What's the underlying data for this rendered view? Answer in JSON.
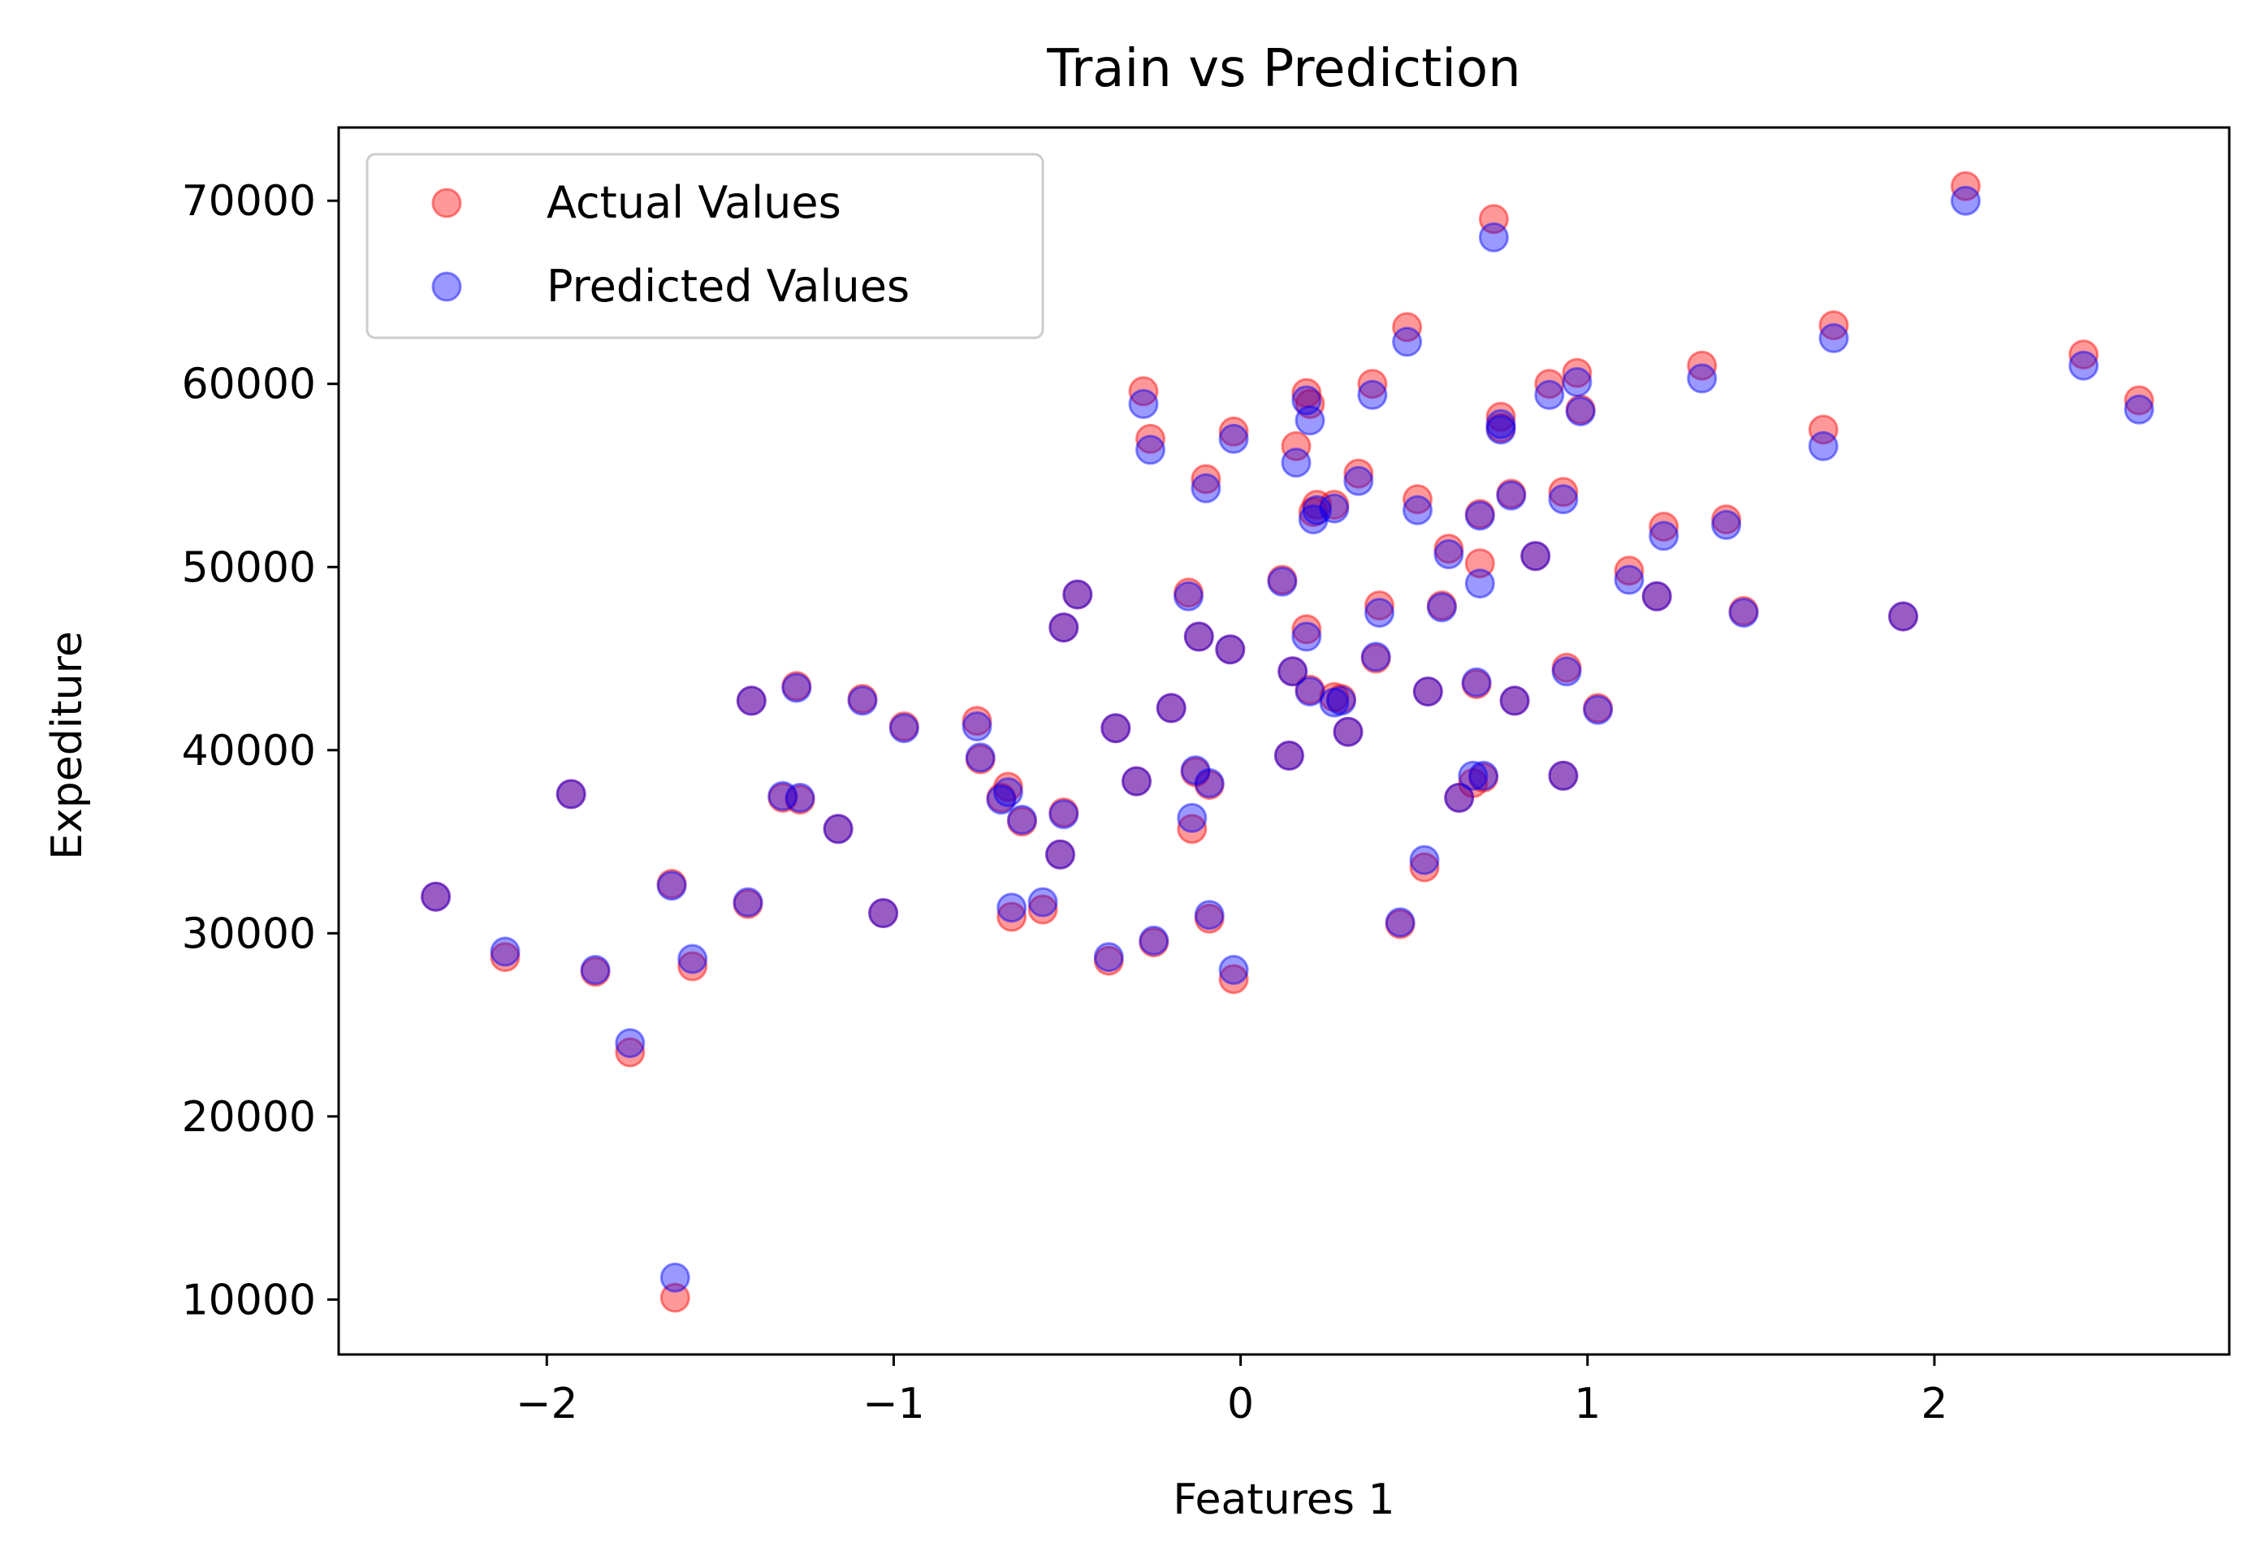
{
  "chart_data": {
    "type": "scatter",
    "title": "Train vs Prediction",
    "xlabel": "Features 1",
    "ylabel": "Expediture",
    "xlim": [
      -2.6,
      2.85
    ],
    "ylim": [
      7000,
      74000
    ],
    "xticks": [
      -2,
      -1,
      0,
      1,
      2
    ],
    "xtick_labels": [
      "−2",
      "−1",
      "0",
      "1",
      "2"
    ],
    "yticks": [
      10000,
      20000,
      30000,
      40000,
      50000,
      60000,
      70000
    ],
    "ytick_labels": [
      "10000",
      "20000",
      "30000",
      "40000",
      "50000",
      "60000",
      "70000"
    ],
    "grid": false,
    "legend_position": "top-left",
    "series": [
      {
        "name": "Actual Values",
        "color": "#ff0000",
        "x": [
          -2.32,
          -2.12,
          -1.93,
          -1.86,
          -1.76,
          -1.63,
          -1.64,
          -1.58,
          -1.42,
          -1.41,
          -1.32,
          -1.28,
          -1.27,
          -1.16,
          -1.09,
          -1.03,
          -0.97,
          -0.76,
          -0.75,
          -0.69,
          -0.67,
          -0.66,
          -0.63,
          -0.57,
          -0.52,
          -0.51,
          -0.51,
          -0.47,
          -0.38,
          -0.36,
          -0.3,
          -0.28,
          -0.26,
          -0.25,
          -0.2,
          -0.15,
          -0.14,
          -0.13,
          -0.12,
          -0.1,
          -0.09,
          -0.09,
          -0.03,
          -0.02,
          -0.02,
          0.12,
          0.14,
          0.15,
          0.16,
          0.19,
          0.19,
          0.2,
          0.2,
          0.21,
          0.22,
          0.27,
          0.27,
          0.29,
          0.31,
          0.34,
          0.38,
          0.39,
          0.4,
          0.46,
          0.48,
          0.51,
          0.53,
          0.54,
          0.58,
          0.6,
          0.63,
          0.67,
          0.68,
          0.69,
          0.69,
          0.7,
          0.73,
          0.75,
          0.75,
          0.78,
          0.79,
          0.85,
          0.89,
          0.93,
          0.93,
          0.94,
          0.97,
          0.98,
          1.03,
          1.12,
          1.2,
          1.22,
          1.33,
          1.4,
          1.45,
          1.68,
          1.71,
          1.91,
          2.09,
          2.43,
          2.59
        ],
        "y": [
          32000,
          28700,
          37600,
          27900,
          23500,
          10100,
          32700,
          28200,
          31600,
          42700,
          37400,
          43500,
          37300,
          35700,
          42800,
          31100,
          41300,
          41600,
          39500,
          37400,
          38000,
          30900,
          36100,
          31300,
          34300,
          36600,
          46700,
          48500,
          28500,
          41200,
          38300,
          59600,
          57000,
          29500,
          42300,
          48600,
          35700,
          38800,
          46200,
          54800,
          30800,
          38100,
          45500,
          57400,
          27500,
          49300,
          39700,
          44300,
          56600,
          59500,
          46600,
          43300,
          58900,
          53000,
          53400,
          42900,
          53400,
          42800,
          41000,
          55100,
          60000,
          45000,
          47900,
          30500,
          63100,
          53700,
          33600,
          43200,
          47900,
          51000,
          37400,
          38200,
          43600,
          50200,
          52900,
          38500,
          69000,
          58200,
          57600,
          54000,
          42700,
          50600,
          60000,
          54100,
          38600,
          44500,
          60600,
          58600,
          42300,
          49800,
          48400,
          52200,
          61000,
          52600,
          47600,
          57500,
          63200,
          47300,
          70800,
          61600,
          59100
        ]
      },
      {
        "name": "Predicted Values",
        "color": "#0000ff",
        "x": [
          -2.32,
          -2.12,
          -1.93,
          -1.86,
          -1.76,
          -1.63,
          -1.64,
          -1.58,
          -1.42,
          -1.41,
          -1.32,
          -1.28,
          -1.27,
          -1.16,
          -1.09,
          -1.03,
          -0.97,
          -0.76,
          -0.75,
          -0.69,
          -0.67,
          -0.66,
          -0.63,
          -0.57,
          -0.52,
          -0.51,
          -0.51,
          -0.47,
          -0.38,
          -0.36,
          -0.3,
          -0.28,
          -0.26,
          -0.25,
          -0.2,
          -0.15,
          -0.14,
          -0.13,
          -0.12,
          -0.1,
          -0.09,
          -0.09,
          -0.03,
          -0.02,
          -0.02,
          0.12,
          0.14,
          0.15,
          0.16,
          0.19,
          0.19,
          0.2,
          0.2,
          0.21,
          0.22,
          0.27,
          0.27,
          0.29,
          0.31,
          0.34,
          0.38,
          0.39,
          0.4,
          0.46,
          0.48,
          0.51,
          0.53,
          0.54,
          0.58,
          0.6,
          0.63,
          0.67,
          0.68,
          0.69,
          0.69,
          0.7,
          0.73,
          0.75,
          0.75,
          0.78,
          0.79,
          0.85,
          0.89,
          0.93,
          0.93,
          0.94,
          0.97,
          0.98,
          1.03,
          1.12,
          1.2,
          1.22,
          1.33,
          1.4,
          1.45,
          1.68,
          1.71,
          1.91,
          2.09,
          2.43,
          2.59
        ],
        "y": [
          32000,
          29000,
          37600,
          28000,
          24000,
          11200,
          32600,
          28600,
          31700,
          42700,
          37500,
          43400,
          37400,
          35700,
          42700,
          31100,
          41200,
          41300,
          39600,
          37300,
          37700,
          31400,
          36200,
          31700,
          34300,
          36500,
          46700,
          48500,
          28700,
          41200,
          38300,
          58900,
          56400,
          29600,
          42300,
          48400,
          36300,
          38900,
          46200,
          54300,
          31000,
          38200,
          45500,
          57000,
          28000,
          49200,
          39700,
          44300,
          55700,
          59100,
          46200,
          43200,
          58000,
          52600,
          53100,
          42600,
          53200,
          42700,
          41000,
          54700,
          59400,
          45100,
          47500,
          30600,
          62300,
          53100,
          34000,
          43200,
          47800,
          50700,
          37400,
          38600,
          43700,
          49100,
          52800,
          38600,
          68000,
          57500,
          57800,
          53900,
          42700,
          50600,
          59400,
          53700,
          38600,
          44300,
          60100,
          58500,
          42200,
          49300,
          48400,
          51700,
          60300,
          52300,
          47500,
          56600,
          62500,
          47300,
          70000,
          61000,
          58600
        ]
      }
    ]
  }
}
